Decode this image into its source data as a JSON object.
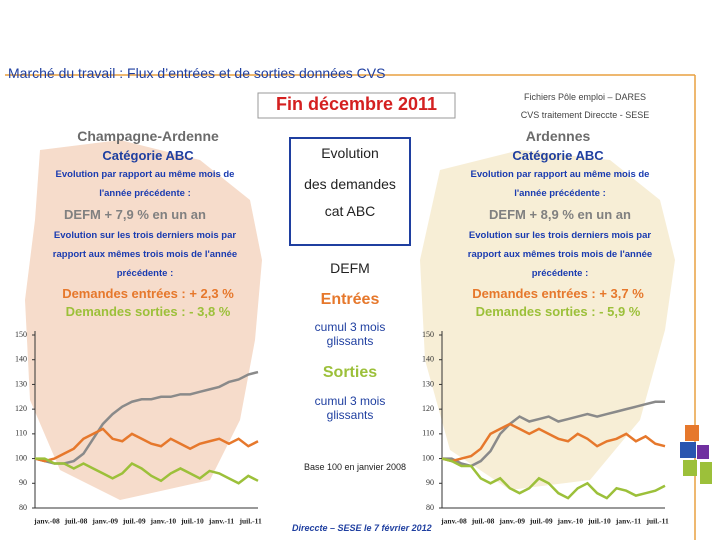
{
  "title": "Marché du travail : Flux d’entrées et de sorties données CVS",
  "period": "Fin décembre 2011",
  "source": [
    "Fichiers Pôle emploi – DARES",
    "CVS traitement Direccte - SESE"
  ],
  "left_panel": {
    "region": "Champagne-Ardenne",
    "category": "Catégorie ABC",
    "annual_note": "Evolution par rapport au même mois de l'année précédente :",
    "defm": "DEFM + 7,9 % en un an",
    "quarter_note": "Evolution sur les trois derniers mois par rapport aux mêmes trois mois de l'année précédente :",
    "entries": "Demandes entrées : + 2,3 %",
    "exits": "Demandes sorties : - 3,8 %"
  },
  "right_panel": {
    "region": "Ardennes",
    "category": "Catégorie ABC",
    "annual_note": "Evolution par rapport au même mois de l'année précédente :",
    "defm": "DEFM + 8,9 % en un an",
    "quarter_note": "Evolution sur les trois derniers mois par rapport aux mêmes trois mois de l'année précédente :",
    "entries": "Demandes entrées : + 3,7 %",
    "exits": "Demandes sorties : - 5,9 %"
  },
  "legend": {
    "box": [
      "Evolution",
      "des demandes",
      "cat ABC"
    ],
    "defm": "DEFM",
    "entries": "Entrées",
    "entries_note": "cumul 3 mois glissants",
    "exits": "Sorties",
    "exits_note": "cumul 3 mois glissants",
    "base": "Base 100 en janvier 2008"
  },
  "footer": "Direccte – SESE le 7 février 2012",
  "chart_data": [
    {
      "type": "line",
      "categories": [
        "janv.-08",
        null,
        null,
        "juil.-08",
        null,
        null,
        "janv.-09",
        null,
        null,
        "juil.-09",
        null,
        null,
        "janv.-10",
        null,
        null,
        "juil.-10",
        null,
        null,
        "janv.-11",
        null,
        null,
        "juil.-11",
        null,
        null
      ],
      "series": [
        {
          "color": "#8a8a8a",
          "values": [
            100,
            99,
            98,
            98,
            99,
            102,
            108,
            114,
            118,
            121,
            123,
            124,
            124,
            125,
            125,
            126,
            126,
            127,
            128,
            129,
            131,
            132,
            134,
            135
          ]
        },
        {
          "color": "#e6782c",
          "values": [
            100,
            99,
            100,
            102,
            104,
            108,
            110,
            112,
            108,
            107,
            110,
            108,
            106,
            105,
            108,
            106,
            104,
            106,
            107,
            108,
            106,
            108,
            105,
            107
          ]
        },
        {
          "color": "#9cc03a",
          "values": [
            100,
            100,
            98,
            98,
            96,
            98,
            96,
            94,
            92,
            94,
            98,
            96,
            93,
            91,
            94,
            96,
            94,
            92,
            95,
            94,
            92,
            90,
            93,
            91
          ]
        }
      ],
      "ylim": [
        80,
        150
      ],
      "yticks": [
        80,
        90,
        100,
        110,
        120,
        130,
        140,
        150
      ]
    },
    {
      "type": "line",
      "categories": [
        "janv.-08",
        null,
        null,
        "juil.-08",
        null,
        null,
        "janv.-09",
        null,
        null,
        "juil.-09",
        null,
        null,
        "janv.-10",
        null,
        null,
        "juil.-10",
        null,
        null,
        "janv.-11",
        null,
        null,
        "juil.-11",
        null,
        null
      ],
      "series": [
        {
          "color": "#8a8a8a",
          "values": [
            100,
            100,
            98,
            97,
            99,
            103,
            110,
            114,
            117,
            115,
            116,
            117,
            115,
            116,
            117,
            118,
            117,
            118,
            119,
            120,
            121,
            122,
            123,
            123
          ]
        },
        {
          "color": "#e6782c",
          "values": [
            100,
            99,
            100,
            101,
            104,
            110,
            112,
            114,
            112,
            110,
            112,
            110,
            108,
            107,
            110,
            108,
            105,
            107,
            108,
            110,
            107,
            109,
            106,
            105
          ]
        },
        {
          "color": "#9cc03a",
          "values": [
            100,
            99,
            97,
            97,
            92,
            90,
            92,
            88,
            86,
            88,
            92,
            90,
            86,
            84,
            88,
            90,
            86,
            84,
            88,
            87,
            85,
            86,
            87,
            89
          ]
        }
      ],
      "ylim": [
        80,
        150
      ],
      "yticks": [
        80,
        90,
        100,
        110,
        120,
        130,
        140,
        150
      ]
    }
  ]
}
